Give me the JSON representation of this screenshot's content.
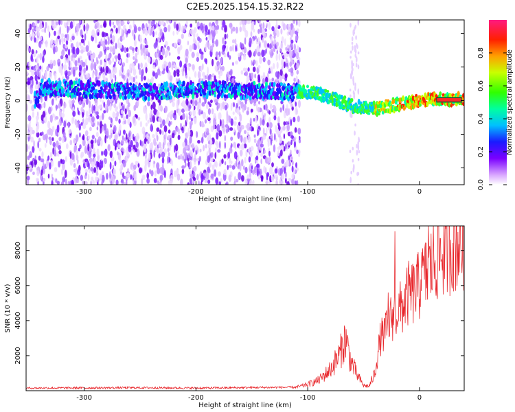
{
  "title": "C2E5.2025.154.15.32.R22",
  "chart_data": [
    {
      "type": "heatmap",
      "title": "C2E5.2025.154.15.32.R22",
      "xlabel": "Height of straight line (km)",
      "ylabel": "Frequency (Hz)",
      "xlim": [
        -352,
        40
      ],
      "ylim": [
        -50,
        48
      ],
      "xticks": [
        -300,
        -200,
        -100,
        0
      ],
      "yticks": [
        -40,
        -20,
        0,
        20,
        40
      ],
      "colorbar": {
        "label": "Normalized spectral amplitude",
        "range": [
          0,
          1
        ],
        "ticks": [
          0,
          0.2,
          0.4,
          0.6,
          0.8
        ]
      },
      "ridge": {
        "description_points": [
          {
            "x": -340,
            "y": 8
          },
          {
            "x": -300,
            "y": 7
          },
          {
            "x": -250,
            "y": 5
          },
          {
            "x": -200,
            "y": 7
          },
          {
            "x": -150,
            "y": 6
          },
          {
            "x": -100,
            "y": 5
          },
          {
            "x": -80,
            "y": 2
          },
          {
            "x": -60,
            "y": -3
          },
          {
            "x": -40,
            "y": -5
          },
          {
            "x": -20,
            "y": -2
          },
          {
            "x": 0,
            "y": 0
          },
          {
            "x": 10,
            "y": 1
          },
          {
            "x": 40,
            "y": 1
          }
        ],
        "strong_tone": {
          "x_start": 15,
          "x_end": 38,
          "y": 0.5
        }
      },
      "noise_region": {
        "x_end": -107
      }
    },
    {
      "type": "line",
      "xlabel": "Height of straight line (km)",
      "ylabel": "SNR (10 * v/v)",
      "xlim": [
        -352,
        40
      ],
      "ylim": [
        0,
        9400
      ],
      "xticks": [
        -300,
        -200,
        -100,
        0
      ],
      "yticks": [
        2000,
        4000,
        6000,
        8000
      ],
      "series": [
        {
          "name": "SNR",
          "color": "#e8262b",
          "x": [
            -352,
            -300,
            -250,
            -200,
            -150,
            -110,
            -100,
            -90,
            -80,
            -72,
            -66,
            -62,
            -56,
            -50,
            -45,
            -40,
            -35,
            -30,
            -25,
            -20,
            -15,
            -10,
            -5,
            0,
            5,
            10,
            15,
            20,
            25,
            30,
            35,
            40
          ],
          "y": [
            150,
            160,
            170,
            150,
            180,
            200,
            350,
            600,
            1200,
            2000,
            3000,
            1800,
            900,
            300,
            250,
            1000,
            3000,
            3400,
            4200,
            4500,
            4800,
            5500,
            5600,
            6000,
            6500,
            7000,
            7600,
            7900,
            8200,
            8400,
            8500,
            8600
          ]
        }
      ],
      "spikes": [
        {
          "x": -22,
          "y": 9100
        },
        {
          "x": 8,
          "y": 9400
        },
        {
          "x": -28,
          "y": 5600
        },
        {
          "x": 2,
          "y": 7900
        }
      ]
    }
  ]
}
